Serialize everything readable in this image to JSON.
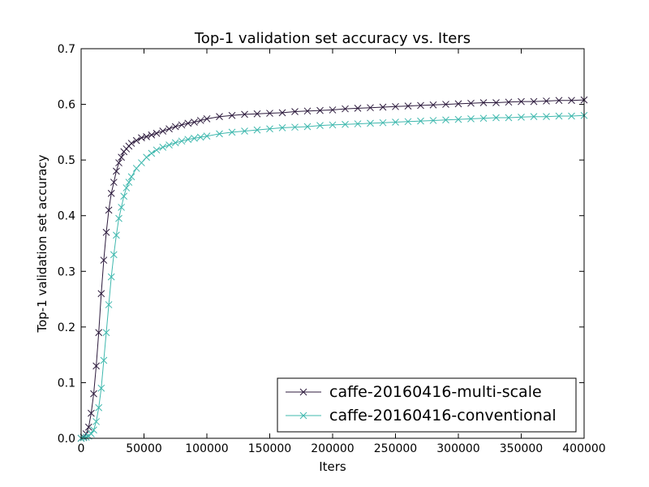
{
  "chart_data": {
    "type": "line",
    "title": "Top-1 validation set accuracy vs. Iters",
    "xlabel": "Iters",
    "ylabel": "Top-1 validation set accuracy",
    "xlim": [
      0,
      400000
    ],
    "ylim": [
      0,
      0.7
    ],
    "xticks": [
      0,
      50000,
      100000,
      150000,
      200000,
      250000,
      300000,
      350000,
      400000
    ],
    "yticks": [
      0.0,
      0.1,
      0.2,
      0.3,
      0.4,
      0.5,
      0.6,
      0.7
    ],
    "xtick_labels": [
      "0",
      "50000",
      "100000",
      "150000",
      "200000",
      "250000",
      "300000",
      "350000",
      "400000"
    ],
    "ytick_labels": [
      "0.0",
      "0.1",
      "0.2",
      "0.3",
      "0.4",
      "0.5",
      "0.6",
      "0.7"
    ],
    "grid": false,
    "legend_position": "lower-right",
    "marker": "x",
    "series": [
      {
        "name": "caffe-20160416-multi-scale",
        "color": "#2d1b3d",
        "x": [
          0,
          2000,
          4000,
          6000,
          8000,
          10000,
          12000,
          14000,
          16000,
          18000,
          20000,
          22000,
          24000,
          26000,
          28000,
          30000,
          32000,
          34000,
          36000,
          38000,
          40000,
          44000,
          48000,
          52000,
          56000,
          60000,
          65000,
          70000,
          75000,
          80000,
          85000,
          90000,
          95000,
          100000,
          110000,
          120000,
          130000,
          140000,
          150000,
          160000,
          170000,
          180000,
          190000,
          200000,
          210000,
          220000,
          230000,
          240000,
          250000,
          260000,
          270000,
          280000,
          290000,
          300000,
          310000,
          320000,
          330000,
          340000,
          350000,
          360000,
          370000,
          380000,
          390000,
          400000
        ],
        "y": [
          0.0,
          0.002,
          0.008,
          0.02,
          0.045,
          0.08,
          0.13,
          0.19,
          0.26,
          0.32,
          0.37,
          0.41,
          0.44,
          0.46,
          0.48,
          0.495,
          0.505,
          0.515,
          0.52,
          0.525,
          0.53,
          0.535,
          0.54,
          0.542,
          0.545,
          0.548,
          0.552,
          0.556,
          0.56,
          0.563,
          0.566,
          0.568,
          0.571,
          0.574,
          0.578,
          0.58,
          0.582,
          0.583,
          0.584,
          0.585,
          0.587,
          0.588,
          0.589,
          0.59,
          0.592,
          0.593,
          0.594,
          0.595,
          0.596,
          0.597,
          0.598,
          0.599,
          0.6,
          0.601,
          0.602,
          0.603,
          0.603,
          0.604,
          0.605,
          0.605,
          0.606,
          0.607,
          0.607,
          0.608
        ]
      },
      {
        "name": "caffe-20160416-conventional",
        "color": "#3fb8ae",
        "x": [
          0,
          2000,
          4000,
          6000,
          8000,
          10000,
          12000,
          14000,
          16000,
          18000,
          20000,
          22000,
          24000,
          26000,
          28000,
          30000,
          32000,
          34000,
          36000,
          38000,
          40000,
          44000,
          48000,
          52000,
          56000,
          60000,
          65000,
          70000,
          75000,
          80000,
          85000,
          90000,
          95000,
          100000,
          110000,
          120000,
          130000,
          140000,
          150000,
          160000,
          170000,
          180000,
          190000,
          200000,
          210000,
          220000,
          230000,
          240000,
          250000,
          260000,
          270000,
          280000,
          290000,
          300000,
          310000,
          320000,
          330000,
          340000,
          350000,
          360000,
          370000,
          380000,
          390000,
          400000
        ],
        "y": [
          0.0,
          0.001,
          0.002,
          0.004,
          0.008,
          0.015,
          0.03,
          0.055,
          0.09,
          0.14,
          0.19,
          0.24,
          0.29,
          0.33,
          0.365,
          0.395,
          0.415,
          0.435,
          0.45,
          0.46,
          0.47,
          0.485,
          0.495,
          0.505,
          0.512,
          0.518,
          0.523,
          0.527,
          0.531,
          0.534,
          0.537,
          0.539,
          0.541,
          0.543,
          0.547,
          0.55,
          0.552,
          0.554,
          0.556,
          0.558,
          0.559,
          0.56,
          0.562,
          0.563,
          0.564,
          0.565,
          0.566,
          0.567,
          0.568,
          0.569,
          0.57,
          0.571,
          0.572,
          0.573,
          0.574,
          0.575,
          0.576,
          0.576,
          0.577,
          0.578,
          0.578,
          0.579,
          0.579,
          0.58
        ]
      }
    ]
  }
}
